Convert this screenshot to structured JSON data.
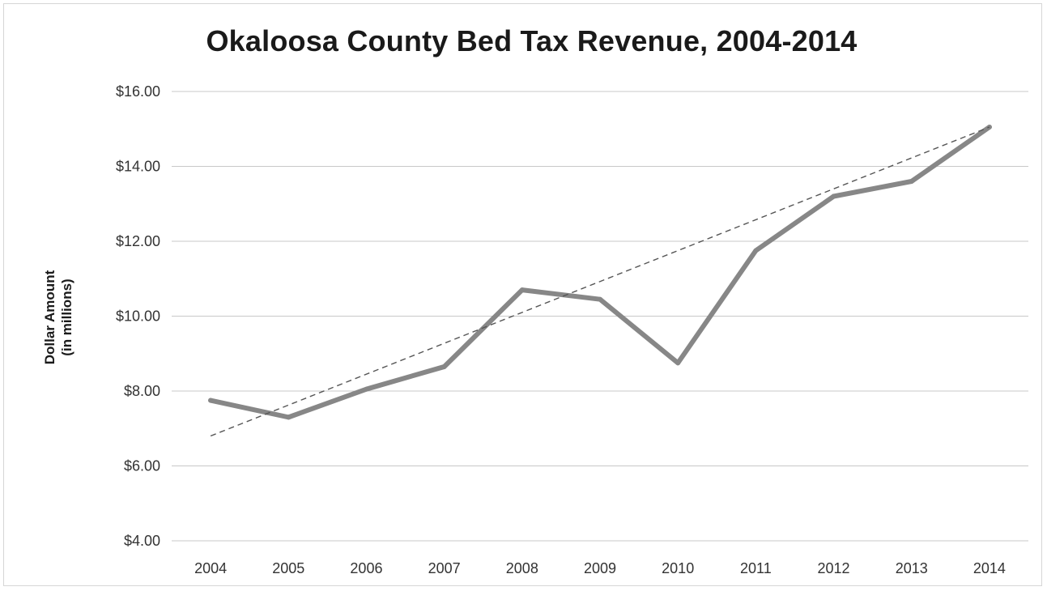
{
  "chart_data": {
    "type": "line",
    "title": "Okaloosa County Bed Tax Revenue, 2004-2014",
    "ylabel_lines": [
      "Dollar Amount",
      "(in millions)"
    ],
    "xlabel": "",
    "categories": [
      "2004",
      "2005",
      "2006",
      "2007",
      "2008",
      "2009",
      "2010",
      "2011",
      "2012",
      "2013",
      "2014"
    ],
    "series": [
      {
        "values": [
          7.75,
          7.3,
          8.05,
          8.65,
          10.7,
          10.45,
          8.75,
          11.75,
          13.2,
          13.6,
          15.05
        ],
        "color": "#878787"
      }
    ],
    "trendline": {
      "type": "linear",
      "start": 6.8,
      "end": 15.05,
      "color": "#555555",
      "style": "dashed"
    },
    "ylim": [
      4,
      16
    ],
    "yticks": [
      4,
      6,
      8,
      10,
      12,
      14,
      16
    ],
    "ytick_labels": [
      "$4.00",
      "$6.00",
      "$8.00",
      "$10.00",
      "$12.00",
      "$14.00",
      "$16.00"
    ],
    "grid": true,
    "legend": "none"
  }
}
